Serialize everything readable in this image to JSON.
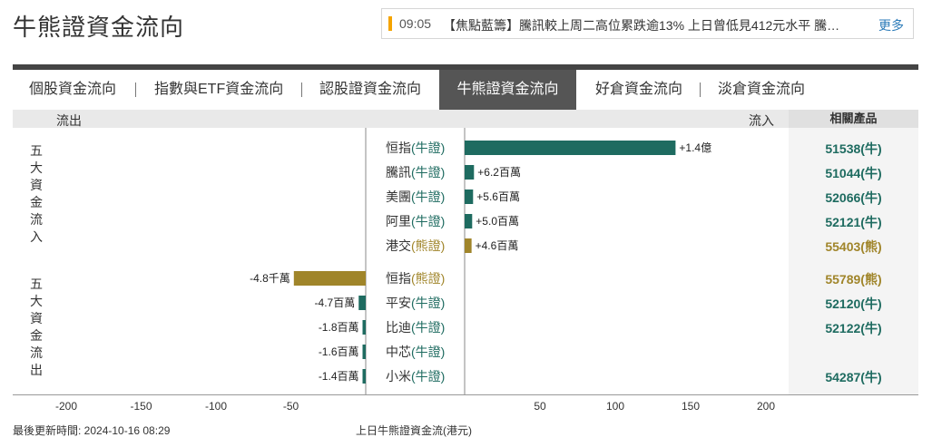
{
  "page": {
    "title": "牛熊證資金流向"
  },
  "news": {
    "time": "09:05",
    "text": "【焦點藍籌】騰訊較上周二高位累跌逾13% 上日曾低見412元水平 騰…",
    "more": "更多"
  },
  "tabs": [
    {
      "label": "個股資金流向",
      "active": false
    },
    {
      "label": "指數與ETF資金流向",
      "active": false
    },
    {
      "label": "認股證資金流向",
      "active": false
    },
    {
      "label": "牛熊證資金流向",
      "active": true
    },
    {
      "label": "好倉資金流向",
      "active": false
    },
    {
      "label": "淡倉資金流向",
      "active": false
    }
  ],
  "header": {
    "out_label": "流出",
    "in_label": "流入",
    "related_label": "相關產品"
  },
  "groups": {
    "inflow_label": "五大資金流入",
    "outflow_label": "五大資金流出"
  },
  "colors": {
    "bull": "#1e6b60",
    "bear": "#a0852a",
    "accent": "#f5a400"
  },
  "chart_data": {
    "type": "bar",
    "orientation": "horizontal",
    "x_unit": "百萬",
    "xlim": [
      -230,
      240
    ],
    "xticks": [
      -200,
      -150,
      -100,
      -50,
      50,
      100,
      150,
      200
    ],
    "xlabel": "上日牛熊證資金流(港元)",
    "rows": [
      {
        "stock": "恒指",
        "type": "牛證",
        "kind": "bull",
        "value": 140,
        "label": "+1.4億",
        "product": "51538(牛)"
      },
      {
        "stock": "騰訊",
        "type": "牛證",
        "kind": "bull",
        "value": 6.2,
        "label": "+6.2百萬",
        "product": "51044(牛)"
      },
      {
        "stock": "美團",
        "type": "牛證",
        "kind": "bull",
        "value": 5.6,
        "label": "+5.6百萬",
        "product": "52066(牛)"
      },
      {
        "stock": "阿里",
        "type": "牛證",
        "kind": "bull",
        "value": 5.0,
        "label": "+5.0百萬",
        "product": "52121(牛)"
      },
      {
        "stock": "港交",
        "type": "熊證",
        "kind": "bear",
        "value": 4.6,
        "label": "+4.6百萬",
        "product": "55403(熊)"
      },
      {
        "stock": "恒指",
        "type": "熊證",
        "kind": "bear",
        "value": -48,
        "label": "-4.8千萬",
        "product": "55789(熊)"
      },
      {
        "stock": "平安",
        "type": "牛證",
        "kind": "bull",
        "value": -4.7,
        "label": "-4.7百萬",
        "product": "52120(牛)"
      },
      {
        "stock": "比迪",
        "type": "牛證",
        "kind": "bull",
        "value": -1.8,
        "label": "-1.8百萬",
        "product": "52122(牛)"
      },
      {
        "stock": "中芯",
        "type": "牛證",
        "kind": "bull",
        "value": -1.6,
        "label": "-1.6百萬",
        "product": ""
      },
      {
        "stock": "小米",
        "type": "牛證",
        "kind": "bull",
        "value": -1.4,
        "label": "-1.4百萬",
        "product": "54287(牛)"
      }
    ]
  },
  "footer": {
    "updated": "最後更新時間: 2024-10-16 08:29"
  }
}
